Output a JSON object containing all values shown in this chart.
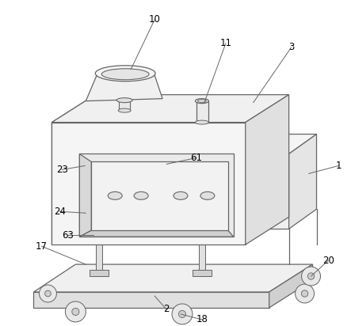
{
  "bg_color": "#ffffff",
  "line_color": "#666666",
  "figsize": [
    4.43,
    4.12
  ],
  "dpi": 100
}
